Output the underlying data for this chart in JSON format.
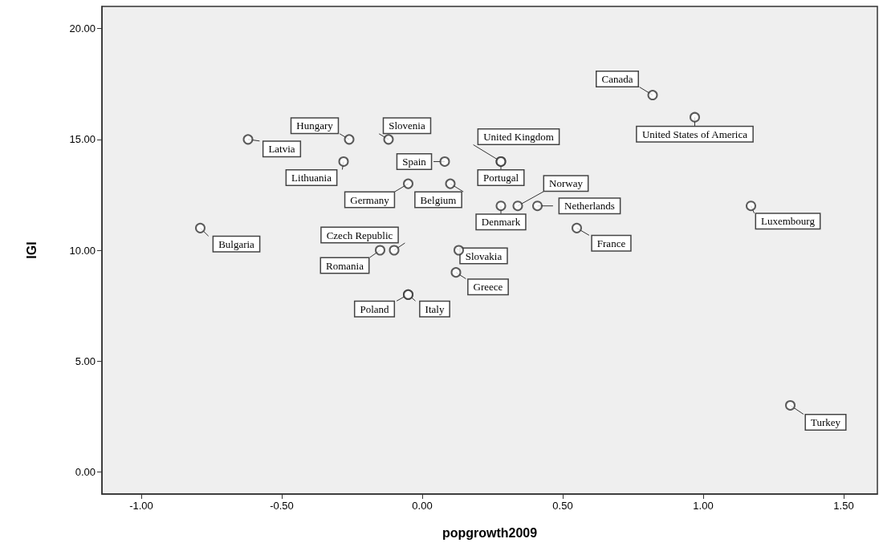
{
  "chart_data": {
    "type": "scatter",
    "xlabel": "popgrowth2009",
    "ylabel": "IGI",
    "x": [
      0.82,
      0.97,
      -0.26,
      -0.62,
      -0.12,
      0.28,
      0.08,
      -0.28,
      0.28,
      -0.05,
      0.1,
      0.34,
      0.28,
      0.41,
      1.17,
      -0.79,
      0.55,
      -0.1,
      -0.15,
      0.13,
      0.12,
      -0.05,
      -0.05,
      1.31
    ],
    "values": [
      17,
      16,
      15,
      15,
      15,
      14,
      14,
      14,
      14,
      13,
      13,
      12,
      12,
      12,
      12,
      11,
      11,
      10,
      10,
      10,
      9,
      8,
      8,
      3
    ],
    "color": "#333333",
    "marker": "circle",
    "grid": false,
    "xlim": [
      -1.14,
      1.62
    ],
    "ylim": [
      -1,
      21
    ],
    "xticks": [
      {
        "value": -1,
        "label": "-1.00"
      },
      {
        "value": -0.5,
        "label": "-0.50"
      },
      {
        "value": 0,
        "label": "0.00"
      },
      {
        "value": 0.5,
        "label": "0.50"
      },
      {
        "value": 1,
        "label": "1.00"
      },
      {
        "value": 1.5,
        "label": "1.50"
      }
    ],
    "yticks": [
      {
        "value": 0,
        "label": "0.00"
      },
      {
        "value": 5,
        "label": "5.00"
      },
      {
        "value": 10,
        "label": "10.00"
      },
      {
        "value": 15,
        "label": "15.00"
      },
      {
        "value": 20,
        "label": "20.00"
      }
    ],
    "annotations": [
      {
        "text": "Canada",
        "x": 0.82,
        "y": 17
      },
      {
        "text": "United States of America",
        "x": 0.97,
        "y": 16
      },
      {
        "text": "Hungary",
        "x": -0.26,
        "y": 15
      },
      {
        "text": "Latvia",
        "x": -0.62,
        "y": 15
      },
      {
        "text": "Slovenia",
        "x": -0.12,
        "y": 15
      },
      {
        "text": "United Kingdom",
        "x": 0.28,
        "y": 14
      },
      {
        "text": "Spain",
        "x": 0.08,
        "y": 14
      },
      {
        "text": "Lithuania",
        "x": -0.28,
        "y": 14
      },
      {
        "text": "Portugal",
        "x": 0.28,
        "y": 14
      },
      {
        "text": "Germany",
        "x": -0.05,
        "y": 13
      },
      {
        "text": "Belgium",
        "x": 0.1,
        "y": 13
      },
      {
        "text": "Norway",
        "x": 0.34,
        "y": 12
      },
      {
        "text": "Denmark",
        "x": 0.28,
        "y": 12
      },
      {
        "text": "Netherlands",
        "x": 0.41,
        "y": 12
      },
      {
        "text": "Luxembourg",
        "x": 1.17,
        "y": 12
      },
      {
        "text": "Bulgaria",
        "x": -0.79,
        "y": 11
      },
      {
        "text": "France",
        "x": 0.55,
        "y": 11
      },
      {
        "text": "Czech Republic",
        "x": -0.1,
        "y": 10
      },
      {
        "text": "Romania",
        "x": -0.15,
        "y": 10
      },
      {
        "text": "Slovakia",
        "x": 0.13,
        "y": 10
      },
      {
        "text": "Greece",
        "x": 0.12,
        "y": 9
      },
      {
        "text": "Poland",
        "x": -0.05,
        "y": 8
      },
      {
        "text": "Italy",
        "x": -0.05,
        "y": 8
      },
      {
        "text": "Turkey",
        "x": 1.31,
        "y": 3
      }
    ]
  }
}
